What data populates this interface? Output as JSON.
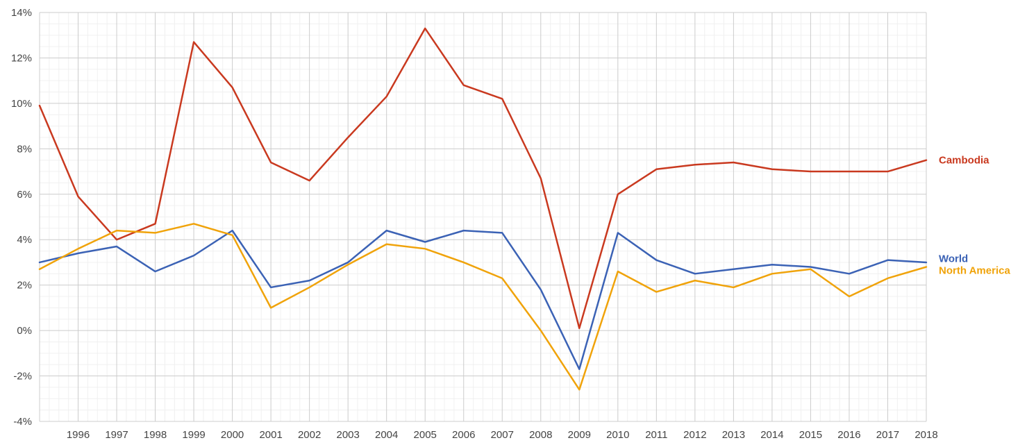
{
  "chart_data": {
    "type": "line",
    "title": "",
    "xlabel": "",
    "ylabel": "",
    "x": [
      1995,
      1996,
      1997,
      1998,
      1999,
      2000,
      2001,
      2002,
      2003,
      2004,
      2005,
      2006,
      2007,
      2008,
      2009,
      2010,
      2011,
      2012,
      2013,
      2014,
      2015,
      2016,
      2017,
      2018
    ],
    "x_tick_labels": [
      "1996",
      "1997",
      "1998",
      "1999",
      "2000",
      "2001",
      "2002",
      "2003",
      "2004",
      "2005",
      "2006",
      "2007",
      "2008",
      "2009",
      "2010",
      "2011",
      "2012",
      "2013",
      "2014",
      "2015",
      "2016",
      "2017",
      "2018"
    ],
    "y_ticks": [
      -4,
      -2,
      0,
      2,
      4,
      6,
      8,
      10,
      12,
      14
    ],
    "y_tick_labels": [
      "-4%",
      "-2%",
      "0%",
      "2%",
      "4%",
      "6%",
      "8%",
      "10%",
      "12%",
      "14%"
    ],
    "ylim": [
      -4,
      14
    ],
    "xlim": [
      1995,
      2018
    ],
    "grid": true,
    "legend": "direct labels at right end of lines",
    "series": [
      {
        "name": "Cambodia",
        "color": "#c9391f",
        "values": [
          9.9,
          5.9,
          4.0,
          4.7,
          12.7,
          10.7,
          7.4,
          6.6,
          8.5,
          10.3,
          13.3,
          10.8,
          10.2,
          6.7,
          0.1,
          6.0,
          7.1,
          7.3,
          7.4,
          7.1,
          7.0,
          7.0,
          7.0,
          7.5
        ]
      },
      {
        "name": "World",
        "color": "#3b62b5",
        "values": [
          3.0,
          3.4,
          3.7,
          2.6,
          3.3,
          4.4,
          1.9,
          2.2,
          3.0,
          4.4,
          3.9,
          4.4,
          4.3,
          1.8,
          -1.7,
          4.3,
          3.1,
          2.5,
          2.7,
          2.9,
          2.8,
          2.5,
          3.1,
          3.0
        ]
      },
      {
        "name": "North America",
        "color": "#f0a30a",
        "values": [
          2.7,
          3.6,
          4.4,
          4.3,
          4.7,
          4.2,
          1.0,
          1.9,
          2.9,
          3.8,
          3.6,
          3.0,
          2.3,
          0.0,
          -2.6,
          2.6,
          1.7,
          2.2,
          1.9,
          2.5,
          2.7,
          1.5,
          2.3,
          2.8
        ]
      }
    ]
  }
}
